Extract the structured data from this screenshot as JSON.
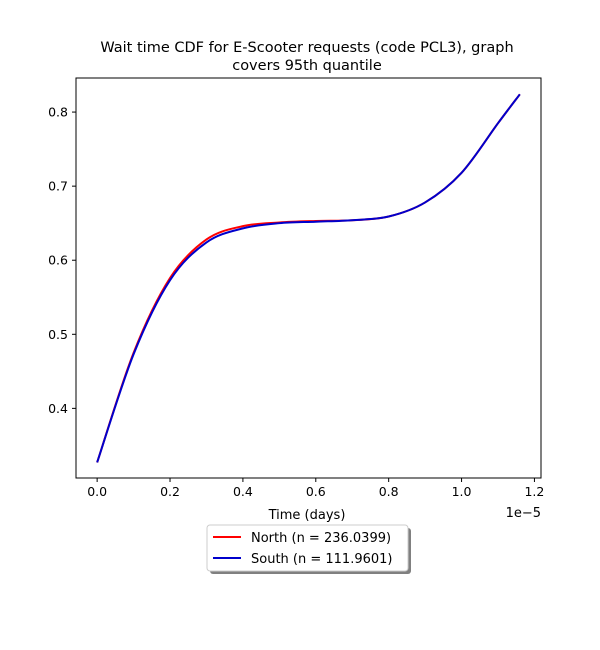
{
  "chart_data": {
    "type": "line",
    "title_line1": "Wait time CDF for E-Scooter  requests (code PCL3), graph",
    "title_line2": "covers 95th quantile",
    "xlabel": "Time (days)",
    "ylabel": "",
    "x_offset_text": "1e−5",
    "xlim": [
      -0.058,
      1.218
    ],
    "ylim": [
      0.306,
      0.846
    ],
    "x_ticks": [
      0.0,
      0.2,
      0.4,
      0.6,
      0.8,
      1.0,
      1.2
    ],
    "x_tick_labels": [
      "0.0",
      "0.2",
      "0.4",
      "0.6",
      "0.8",
      "1.0",
      "1.2"
    ],
    "y_ticks": [
      0.4,
      0.5,
      0.6,
      0.7,
      0.8
    ],
    "y_tick_labels": [
      "0.4",
      "0.5",
      "0.6",
      "0.7",
      "0.8"
    ],
    "legend_position": "below plot",
    "series": [
      {
        "name": "North (n = 236.0399)",
        "color": "#ff0000",
        "x": [
          0.0,
          0.1,
          0.2,
          0.3,
          0.4,
          0.5,
          0.6,
          0.7,
          0.8,
          0.9,
          1.0,
          1.1,
          1.16
        ],
        "y": [
          0.327,
          0.475,
          0.576,
          0.628,
          0.646,
          0.651,
          0.653,
          0.654,
          0.659,
          0.678,
          0.718,
          0.785,
          0.824
        ]
      },
      {
        "name": "South (n = 111.9601)",
        "color": "#0000cc",
        "x": [
          0.0,
          0.1,
          0.2,
          0.3,
          0.4,
          0.5,
          0.6,
          0.7,
          0.8,
          0.9,
          1.0,
          1.1,
          1.16
        ],
        "y": [
          0.327,
          0.473,
          0.573,
          0.624,
          0.643,
          0.65,
          0.652,
          0.654,
          0.659,
          0.678,
          0.718,
          0.785,
          0.824
        ]
      }
    ]
  }
}
